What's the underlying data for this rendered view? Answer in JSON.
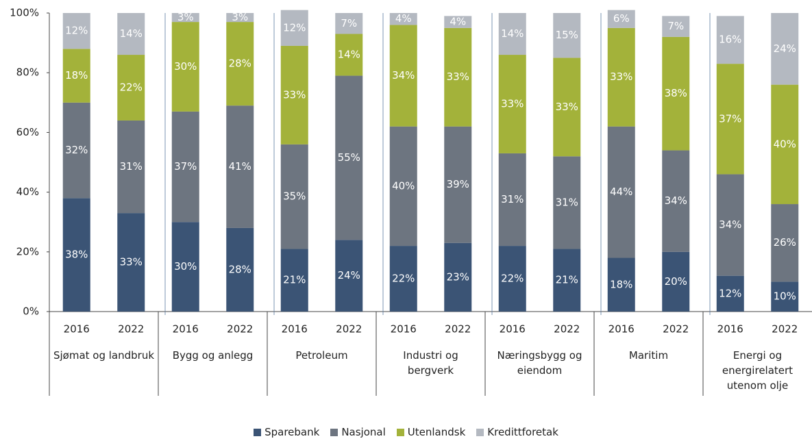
{
  "chart_data": {
    "type": "stacked_bar",
    "categories": [
      "2016",
      "2022",
      "2016",
      "2022",
      "2016",
      "2022",
      "2016",
      "2022",
      "2016",
      "2022",
      "2016",
      "2022",
      "2016",
      "2022"
    ],
    "groups": [
      "Sjømat og landbruk",
      "Bygg og anlegg",
      "Petroleum",
      "Industri og bergverk",
      "Næringsbygg og eiendom",
      "Maritim",
      "Energi og energirelatert utenom olje"
    ],
    "series": [
      {
        "name": "Sparebank",
        "color": "#3b5475",
        "values": [
          38,
          33,
          30,
          28,
          21,
          24,
          22,
          23,
          22,
          21,
          18,
          20,
          12,
          10
        ],
        "value_labels": [
          "38%",
          "33%",
          "30%",
          "28%",
          "21%",
          "24%",
          "22%",
          "23%",
          "22%",
          "21%",
          "18%",
          "20%",
          "12%",
          "10%"
        ]
      },
      {
        "name": "Nasjonal",
        "color": "#6d7580",
        "values": [
          32,
          31,
          37,
          41,
          35,
          55,
          40,
          39,
          31,
          31,
          44,
          34,
          34,
          26
        ],
        "value_labels": [
          "32%",
          "31%",
          "37%",
          "41%",
          "35%",
          "55%",
          "40%",
          "39%",
          "31%",
          "31%",
          "44%",
          "34%",
          "34%",
          "26%"
        ]
      },
      {
        "name": "Utenlandsk",
        "color": "#a3b23a",
        "values": [
          18,
          22,
          30,
          28,
          33,
          14,
          34,
          33,
          33,
          33,
          33,
          38,
          37,
          40
        ],
        "value_labels": [
          "18%",
          "22%",
          "30%",
          "28%",
          "33%",
          "14%",
          "34%",
          "33%",
          "33%",
          "33%",
          "33%",
          "38%",
          "37%",
          "40%"
        ]
      },
      {
        "name": "Kredittforetak",
        "color": "#b4b9c1",
        "values": [
          12,
          14,
          3,
          3,
          12,
          7,
          4,
          4,
          14,
          15,
          6,
          7,
          16,
          24
        ],
        "value_labels": [
          "12%",
          "14%",
          "3%",
          "3%",
          "12%",
          "7%",
          "4%",
          "4%",
          "14%",
          "15%",
          "6%",
          "7%",
          "16%",
          "24%"
        ]
      }
    ],
    "ylim": [
      0,
      100
    ],
    "yticks": [
      {
        "value": 0,
        "label": "0%"
      },
      {
        "value": 20,
        "label": "20%"
      },
      {
        "value": 40,
        "label": "40%"
      },
      {
        "value": 60,
        "label": "60%"
      },
      {
        "value": 80,
        "label": "80%"
      },
      {
        "value": 100,
        "label": "100%"
      }
    ],
    "legend": "bottom"
  }
}
